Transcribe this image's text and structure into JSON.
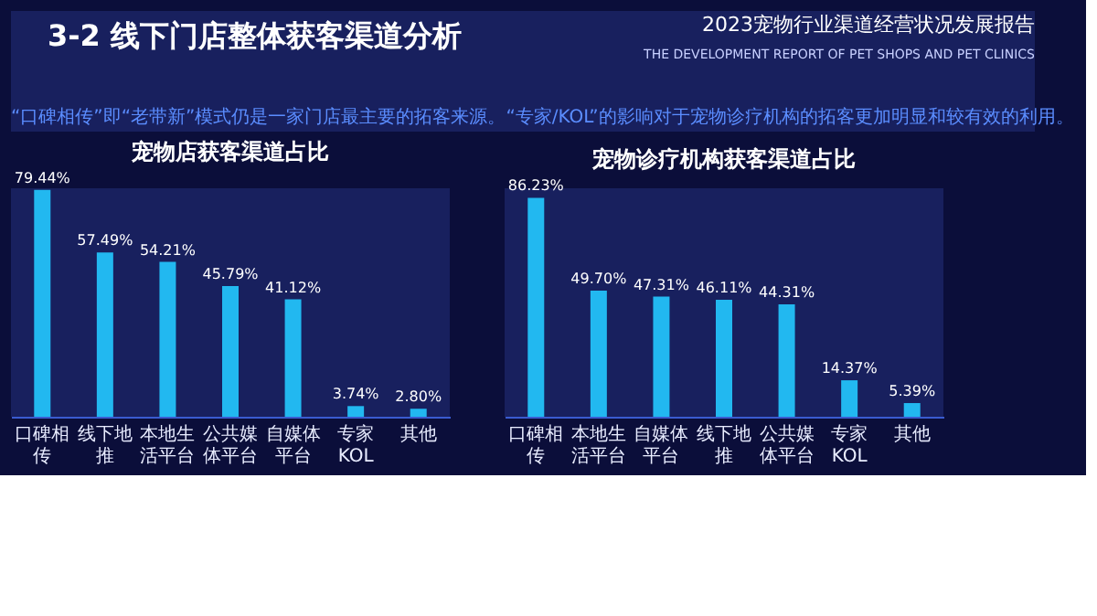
{
  "chart_data": [
    {
      "type": "bar",
      "title": "宠物店获客渠道占比",
      "categories": [
        "口碑相传",
        "线下地推",
        "本地生活平台",
        "公共媒体平台",
        "自媒体平台",
        "专家KOL",
        "其他"
      ],
      "values": [
        79.44,
        57.49,
        54.21,
        45.79,
        41.12,
        3.74,
        2.8
      ],
      "value_labels": [
        "79.44%",
        "57.49%",
        "54.21%",
        "45.79%",
        "41.12%",
        "3.74%",
        "2.80%"
      ],
      "color": "#22b8f0",
      "tick_labels": "x",
      "annotations": [
        "3-2  线下门店整体获客渠道分析",
        "2023宠物行业渠道经营状况发展报告",
        "THE DEVELOPMENT REPORT OF PET SHOPS AND PET CLINICS",
        "“口碑相传”即“老带新”模式仍是一家门店最主要的拓客来源。“专家/KOL”的影响对于宠物诊疗机构的拓客更加明显和较有效的利用。"
      ]
    },
    {
      "type": "bar",
      "title": "宠物诊疗机构获客渠道占比",
      "categories": [
        "口碑相传",
        "本地生活平台",
        "自媒体平台",
        "线下地推",
        "公共媒体平台",
        "专家KOL",
        "其他"
      ],
      "values": [
        86.23,
        49.7,
        47.31,
        46.11,
        44.31,
        14.37,
        5.39
      ],
      "value_labels": [
        "86.23%",
        "49.70%",
        "47.31%",
        "46.11%",
        "44.31%",
        "14.37%",
        "5.39%"
      ],
      "color": "#22b8f0",
      "tick_labels": "x"
    }
  ]
}
